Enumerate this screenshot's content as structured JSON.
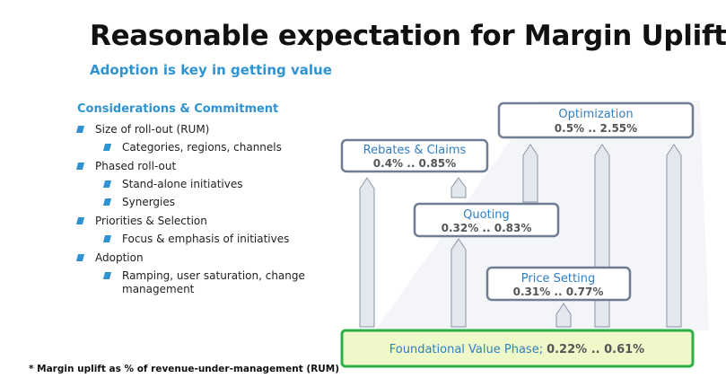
{
  "title": "Reasonable expectation for Margin Uplift*",
  "subtitle": "Adoption is key in getting value",
  "considerations": {
    "heading": "Considerations & Commitment",
    "items": [
      {
        "label": "Size of roll-out (RUM)",
        "subitems": [
          "Categories, regions, channels"
        ]
      },
      {
        "label": "Phased roll-out",
        "subitems": [
          "Stand-alone initiatives",
          "Synergies"
        ]
      },
      {
        "label": "Priorities & Selection",
        "subitems": [
          "Focus & emphasis of initiatives"
        ]
      },
      {
        "label": "Adoption",
        "subitems": [
          "Ramping, user saturation, change management"
        ]
      }
    ]
  },
  "footnote": "* Margin uplift as % of revenue-under-management (RUM)",
  "diagram": {
    "optimization": {
      "label": "Optimization",
      "range": "0.5% .. 2.55%"
    },
    "rebates": {
      "label": "Rebates & Claims",
      "range": "0.4% .. 0.85%"
    },
    "quoting": {
      "label": "Quoting",
      "range": "0.32% .. 0.83%"
    },
    "price_setting": {
      "label": "Price Setting",
      "range": "0.31% .. 0.77%"
    },
    "foundation": {
      "label": "Foundational Value Phase;",
      "range": "0.22% .. 0.61%"
    },
    "colors": {
      "box_border": "#6e7d91",
      "arrow_fill": "#e3e7ee",
      "foundation_fill": "#eef8c8",
      "foundation_border": "#2eb048",
      "label_text": "#2f7fc4",
      "accent": "#2f93d2"
    }
  }
}
